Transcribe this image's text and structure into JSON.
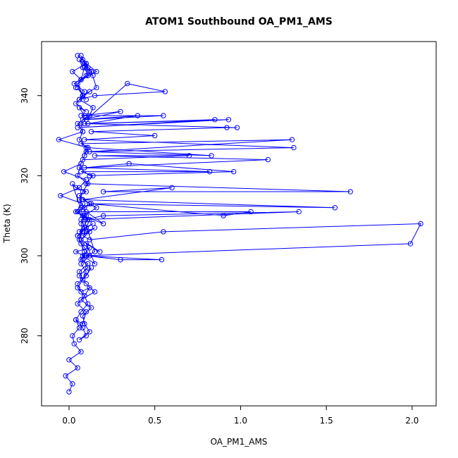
{
  "chart_data": {
    "type": "scatter",
    "style": "points-connected-by-lines",
    "title": "ATOM1 Southbound OA_PM1_AMS",
    "xlabel": "OA_PM1_AMS",
    "ylabel": "Theta (K)",
    "xlim": [
      -0.16,
      2.14
    ],
    "ylim": [
      262.5,
      353.5
    ],
    "xticks": [
      0.0,
      0.5,
      1.0,
      1.5,
      2.0
    ],
    "xtick_labels": [
      "0.0",
      "0.5",
      "1.0",
      "1.5",
      "2.0"
    ],
    "yticks": [
      280,
      300,
      320,
      340
    ],
    "ytick_labels": [
      "280",
      "300",
      "320",
      "340"
    ],
    "grid": false,
    "legend": "none",
    "color": "#0000ff",
    "series": [
      {
        "x": [
          0.0,
          0.02,
          -0.02,
          0.05,
          0.0,
          0.07,
          0.03,
          0.02,
          0.06,
          0.04,
          0.08,
          0.1,
          0.05,
          0.09,
          0.12,
          0.07,
          0.05,
          0.1,
          0.13,
          0.08,
          0.06,
          0.11,
          0.07,
          0.09,
          0.04,
          0.12,
          0.08,
          0.15,
          0.1,
          0.18,
          0.07,
          0.12,
          0.05,
          0.09,
          0.14,
          0.06,
          0.11,
          0.08,
          0.2,
          0.1,
          0.07,
          0.13,
          0.05,
          0.09,
          0.16,
          0.08,
          0.12,
          0.06,
          0.1,
          0.04,
          0.02,
          0.15,
          0.1,
          0.3,
          0.54,
          0.09,
          1.99,
          2.05,
          0.55,
          0.12,
          0.08,
          0.15,
          0.1,
          0.07,
          1.34,
          0.2,
          0.09,
          0.05,
          1.06,
          0.9,
          0.12,
          1.55,
          0.08,
          0.6,
          0.2,
          1.64,
          0.1,
          0.14,
          0.07,
          0.82,
          0.06,
          0.12,
          0.96,
          0.35,
          0.09,
          1.16,
          0.15,
          0.7,
          0.08,
          0.1,
          0.83,
          0.11,
          0.07,
          1.3,
          0.12,
          1.31,
          0.09,
          0.5,
          0.13,
          0.92,
          0.98,
          0.09,
          0.85,
          0.05,
          0.93,
          0.11,
          0.4,
          0.08,
          0.3,
          0.07,
          0.55,
          0.1,
          0.34,
          0.56,
          0.15,
          0.06,
          0.12,
          0.08,
          0.05,
          0.1,
          0.08,
          0.04,
          0.1,
          0.06,
          0.09,
          0.07,
          0.08,
          0.06,
          0.1,
          0.09,
          0.07,
          0.05,
          0.11,
          0.08,
          0.06,
          0.09,
          0.1,
          0.07,
          0.08,
          0.06,
          0.09,
          0.12,
          0.07,
          0.1,
          0.08,
          0.05,
          0.09,
          0.11,
          0.07,
          0.04,
          0.08,
          0.1,
          0.06,
          0.12,
          0.09,
          0.08,
          0.13,
          0.07,
          0.15,
          0.1,
          0.06,
          0.11,
          0.08,
          0.09,
          0.07,
          0.05,
          0.1,
          0.12,
          0.04,
          0.08,
          -0.05,
          0.06,
          0.1,
          -0.03,
          0.07,
          0.09,
          0.11,
          -0.06,
          0.08,
          0.05,
          0.12,
          0.14,
          0.06,
          0.09,
          0.03,
          0.1,
          0.07,
          0.13,
          0.16,
          0.08,
          0.05,
          0.11,
          0.09,
          0.07,
          0.02,
          0.1,
          0.14,
          0.08,
          0.06,
          0.12,
          0.09,
          0.07,
          0.11,
          0.08,
          0.05,
          0.1,
          0.16,
          0.07,
          0.04
        ],
        "y": [
          266,
          268,
          270,
          272,
          274,
          276,
          278,
          280,
          282,
          284,
          283,
          286,
          288,
          290,
          292,
          291,
          293,
          295,
          297,
          294,
          296,
          298,
          299,
          300,
          301,
          302,
          300,
          298,
          303,
          301,
          304,
          306,
          305,
          307,
          308,
          306,
          309,
          310,
          308,
          311,
          312,
          313,
          311,
          310,
          312,
          314,
          313,
          315,
          316,
          317,
          318,
          301,
          300,
          299,
          299,
          300,
          303,
          308,
          306,
          304,
          305,
          307,
          306,
          309,
          311,
          310,
          309,
          311,
          311,
          310,
          313,
          312,
          314,
          317,
          316,
          316,
          318,
          320,
          321,
          321,
          322,
          320,
          321,
          323,
          322,
          324,
          325,
          325,
          324,
          326,
          325,
          327,
          328,
          329,
          326,
          327,
          329,
          330,
          331,
          332,
          332,
          333,
          334,
          332,
          334,
          333,
          335,
          334,
          336,
          335,
          335,
          334,
          343,
          341,
          340,
          339,
          341,
          340,
          342,
          339,
          340,
          338,
          336,
          337,
          335,
          333,
          331,
          329,
          327,
          325,
          323,
          320,
          318,
          316,
          314,
          312,
          310,
          308,
          306,
          304,
          302,
          300,
          298,
          296,
          294,
          292,
          290,
          288,
          286,
          284,
          282,
          280,
          279,
          281,
          283,
          285,
          287,
          289,
          291,
          293,
          295,
          297,
          299,
          301,
          303,
          305,
          307,
          309,
          311,
          313,
          315,
          317,
          319,
          321,
          323,
          325,
          327,
          329,
          331,
          333,
          335,
          337,
          339,
          341,
          343,
          345,
          344,
          346,
          342,
          340,
          343,
          345,
          347,
          344,
          346,
          348,
          345,
          347,
          349,
          346,
          348,
          350,
          347,
          349,
          350,
          348,
          346,
          344,
          342
        ]
      }
    ]
  }
}
